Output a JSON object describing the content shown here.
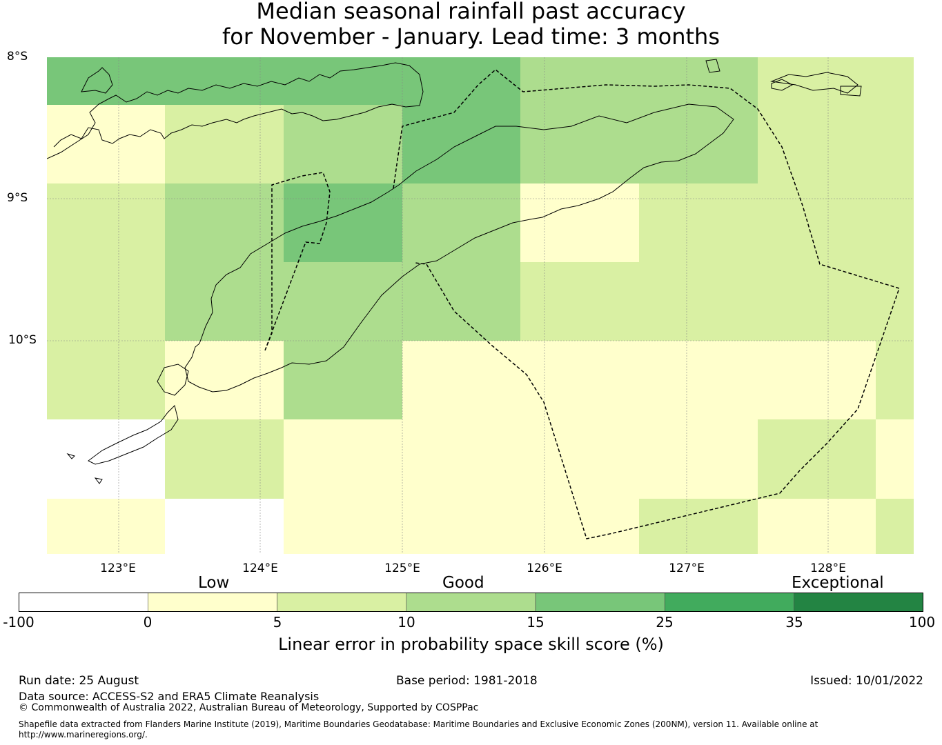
{
  "title": {
    "line1": "Median seasonal rainfall past accuracy",
    "line2": "for November - January. Lead time: 3 months"
  },
  "axes": {
    "lat_labels": [
      "8°S",
      "9°S",
      "10°S"
    ],
    "lon_labels": [
      "123°E",
      "124°E",
      "125°E",
      "126°E",
      "127°E",
      "128°E"
    ]
  },
  "colors": {
    "bin_neg100_0": "#ffffff",
    "bin_0_5": "#ffffcc",
    "bin_5_10": "#d9f0a3",
    "bin_10_15": "#addd8e",
    "bin_15_25": "#78c679",
    "bin_25_35": "#41ab5d",
    "bin_35_100": "#238443"
  },
  "skill_grid": {
    "row_lats": [
      "8.0–8.33°S",
      "8.33–8.89°S",
      "8.89–9.44°S",
      "9.44–10.0°S",
      "10.0–10.56°S",
      "10.56–11.11°S",
      "11.11–11.5°S"
    ],
    "col_lons": [
      "122.5–123.33°E",
      "123.33–124.17°E",
      "124.17–125.0°E",
      "125.0–125.83°E",
      "125.83–126.67°E",
      "126.67–127.5°E",
      "127.5–128.33°E",
      "128.33–128.6°E"
    ],
    "cells": [
      [
        "bin_15_25",
        "bin_15_25",
        "bin_15_25",
        "bin_15_25",
        "bin_10_15",
        "bin_10_15",
        "bin_5_10",
        "bin_5_10"
      ],
      [
        "bin_0_5",
        "bin_5_10",
        "bin_10_15",
        "bin_15_25",
        "bin_10_15",
        "bin_10_15",
        "bin_5_10",
        "bin_5_10"
      ],
      [
        "bin_5_10",
        "bin_10_15",
        "bin_15_25",
        "bin_10_15",
        "bin_0_5",
        "bin_5_10",
        "bin_5_10",
        "bin_5_10"
      ],
      [
        "bin_5_10",
        "bin_10_15",
        "bin_10_15",
        "bin_10_15",
        "bin_5_10",
        "bin_5_10",
        "bin_5_10",
        "bin_5_10"
      ],
      [
        "bin_5_10",
        "bin_0_5",
        "bin_10_15",
        "bin_0_5",
        "bin_0_5",
        "bin_0_5",
        "bin_0_5",
        "bin_5_10"
      ],
      [
        "bin_neg100_0",
        "bin_5_10",
        "bin_0_5",
        "bin_0_5",
        "bin_0_5",
        "bin_0_5",
        "bin_5_10",
        "bin_0_5"
      ],
      [
        "bin_0_5",
        "bin_neg100_0",
        "bin_0_5",
        "bin_0_5",
        "bin_0_5",
        "bin_5_10",
        "bin_0_5",
        "bin_5_10"
      ]
    ]
  },
  "legend": {
    "categories": [
      "Low",
      "Good",
      "Exceptional"
    ],
    "ticks": [
      "-100",
      "0",
      "5",
      "10",
      "15",
      "25",
      "35",
      "100"
    ],
    "bins": [
      "bin_neg100_0",
      "bin_0_5",
      "bin_5_10",
      "bin_10_15",
      "bin_15_25",
      "bin_25_35",
      "bin_35_100"
    ],
    "label": "Linear error in probability space skill score (%)"
  },
  "footer": {
    "run_date": "Run date: 25 August",
    "base_period": "Base period: 1981-2018",
    "issued": "Issued: 10/01/2022",
    "data_source": "Data source: ACCESS-S2 and ERA5 Climate Reanalysis",
    "copyright": "© Commonwealth of Australia 2022, Australian Bureau of Meteorology, Supported by COSPPac",
    "shapefile_line1": "Shapefile data extracted from Flanders Marine Institute (2019), Maritime Boundaries Geodatabase: Maritime Boundaries and Exclusive Economic Zones (200NM), version 11. Available online at",
    "shapefile_line2": "http://www.marineregions.org/."
  }
}
